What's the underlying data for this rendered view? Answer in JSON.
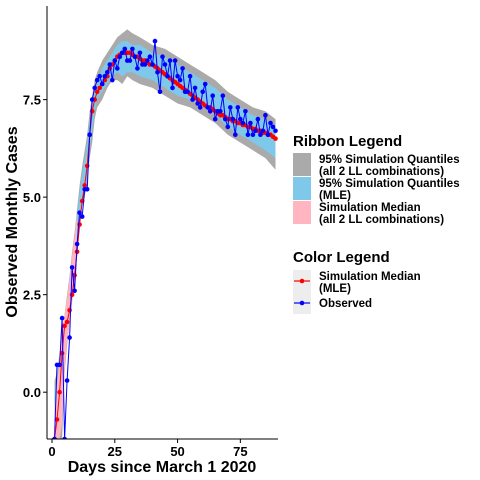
{
  "chart_data": {
    "type": "line",
    "xlabel": "Days since March 1 2020",
    "ylabel": "Observed Monthly Cases",
    "xlim": [
      -2,
      90
    ],
    "ylim": [
      -1.2,
      9.9
    ],
    "x_ticks": [
      0,
      25,
      50,
      75
    ],
    "y_ticks": [
      0.0,
      2.5,
      5.0,
      7.5
    ],
    "y_tick_labels": [
      "0.0",
      "2.5",
      "5.0",
      "7.5"
    ],
    "grid": false,
    "legend_position": "right",
    "ribbon_legend": {
      "title": "Ribbon  Legend",
      "entries": [
        {
          "lines": [
            "95% Simulation Quantiles",
            " (all 2 LL combinations)"
          ],
          "color": "#aaaaaa"
        },
        {
          "lines": [
            "95% Simulation Quantiles",
            " (MLE)"
          ],
          "color": "#7ec8ea"
        },
        {
          "lines": [
            "Simulation Median",
            "  (all 2 LL combinations)"
          ],
          "color": "#ffb6c1"
        }
      ]
    },
    "color_legend": {
      "title": "Color  Legend",
      "entries": [
        {
          "lines": [
            "Simulation Median",
            " (MLE)"
          ],
          "color": "#ff0000"
        },
        {
          "lines": [
            "Observed"
          ],
          "color": "#0000ff"
        }
      ]
    },
    "series": [
      {
        "name": "95% Simulation Quantiles (all 2 LL combinations)",
        "kind": "ribbon",
        "color": "#aaaaaa",
        "x": [
          1,
          2,
          3,
          4,
          5,
          6,
          7,
          8,
          9,
          10,
          11,
          12,
          13,
          14,
          15,
          16,
          17,
          18,
          20,
          22,
          24,
          26,
          28,
          30,
          32,
          35,
          40,
          45,
          50,
          55,
          60,
          65,
          70,
          75,
          80,
          85,
          89
        ],
        "lower": [
          -1.2,
          -1.2,
          -1.2,
          -1.2,
          0.5,
          1.2,
          1.8,
          2.3,
          3.0,
          3.6,
          4.2,
          4.8,
          5.0,
          5.4,
          6.0,
          6.4,
          7.0,
          7.3,
          7.5,
          7.8,
          8.0,
          8.0,
          7.9,
          8.1,
          8.0,
          7.9,
          7.8,
          7.6,
          7.4,
          7.3,
          7.1,
          6.9,
          6.6,
          6.4,
          6.2,
          6.0,
          5.7
        ],
        "upper": [
          0.3,
          0.5,
          1.0,
          1.6,
          2.0,
          2.5,
          3.0,
          3.6,
          4.1,
          4.7,
          5.3,
          5.8,
          6.2,
          6.6,
          7.2,
          7.6,
          8.0,
          8.2,
          8.5,
          8.7,
          8.9,
          9.1,
          9.2,
          9.3,
          9.2,
          9.1,
          8.9,
          8.8,
          8.6,
          8.4,
          8.2,
          8.0,
          7.7,
          7.5,
          7.3,
          7.2,
          7.0
        ]
      },
      {
        "name": "95% Simulation Quantiles (MLE)",
        "kind": "ribbon",
        "color": "#7ec8ea",
        "x": [
          1,
          2,
          3,
          4,
          5,
          6,
          7,
          8,
          9,
          10,
          11,
          12,
          13,
          14,
          15,
          16,
          17,
          18,
          20,
          22,
          24,
          26,
          28,
          30,
          32,
          35,
          40,
          45,
          50,
          55,
          60,
          65,
          70,
          75,
          80,
          85,
          89
        ],
        "lower": [
          -1.2,
          -1.2,
          -1.2,
          -0.4,
          0.9,
          1.5,
          2.0,
          2.6,
          3.2,
          3.8,
          4.4,
          5.0,
          5.2,
          5.6,
          6.2,
          6.7,
          7.2,
          7.5,
          7.7,
          7.9,
          8.1,
          8.2,
          8.1,
          8.2,
          8.2,
          8.1,
          8.0,
          7.8,
          7.6,
          7.5,
          7.3,
          7.1,
          6.8,
          6.6,
          6.4,
          6.2,
          6.0
        ],
        "upper": [
          0.1,
          0.3,
          0.8,
          1.4,
          1.9,
          2.3,
          2.8,
          3.4,
          3.9,
          4.5,
          5.1,
          5.6,
          6.0,
          6.4,
          7.0,
          7.4,
          7.8,
          8.0,
          8.3,
          8.5,
          8.7,
          8.9,
          9.0,
          9.0,
          8.9,
          8.9,
          8.7,
          8.6,
          8.4,
          8.2,
          8.0,
          7.8,
          7.5,
          7.3,
          7.1,
          7.0,
          6.8
        ]
      },
      {
        "name": "Simulation Median (all 2 LL combinations)",
        "kind": "ribbon",
        "color": "#ffb6c1",
        "x": [
          1,
          2,
          3,
          4,
          5,
          6,
          7,
          8,
          9,
          10
        ],
        "lower": [
          -1.2,
          -1.2,
          -1.2,
          -0.8,
          0.6,
          1.3,
          1.8,
          2.4,
          3.0,
          3.6
        ],
        "upper": [
          -0.4,
          0.2,
          0.8,
          1.5,
          2.0,
          2.4,
          2.9,
          3.5,
          4.0,
          4.6
        ]
      },
      {
        "name": "Simulation Median (MLE)",
        "kind": "line",
        "color": "#ff0000",
        "x": [
          1,
          2,
          3,
          4,
          5,
          6,
          7,
          8,
          9,
          10,
          11,
          12,
          13,
          14,
          15,
          16,
          17,
          18,
          19,
          20,
          21,
          22,
          23,
          24,
          25,
          26,
          27,
          28,
          29,
          30,
          31,
          32,
          33,
          34,
          35,
          36,
          37,
          38,
          39,
          40,
          41,
          42,
          43,
          44,
          45,
          46,
          47,
          48,
          49,
          50,
          51,
          52,
          53,
          54,
          55,
          56,
          57,
          58,
          59,
          60,
          61,
          62,
          63,
          64,
          65,
          66,
          67,
          68,
          69,
          70,
          71,
          72,
          73,
          74,
          75,
          76,
          77,
          78,
          79,
          80,
          81,
          82,
          83,
          84,
          85,
          86,
          87,
          88,
          89
        ],
        "y": [
          -1.2,
          -0.7,
          0.0,
          1.0,
          1.7,
          1.8,
          2.1,
          2.5,
          3.0,
          3.6,
          4.3,
          4.9,
          5.3,
          5.8,
          6.6,
          7.2,
          7.5,
          7.7,
          7.8,
          7.9,
          8.0,
          8.1,
          8.3,
          8.4,
          8.5,
          8.6,
          8.65,
          8.7,
          8.7,
          8.7,
          8.7,
          8.65,
          8.6,
          8.6,
          8.55,
          8.5,
          8.5,
          8.45,
          8.4,
          8.4,
          8.35,
          8.3,
          8.25,
          8.2,
          8.15,
          8.1,
          8.05,
          8.0,
          7.95,
          7.9,
          7.85,
          7.8,
          7.75,
          7.7,
          7.65,
          7.6,
          7.55,
          7.5,
          7.45,
          7.4,
          7.35,
          7.3,
          7.3,
          7.25,
          7.2,
          7.15,
          7.1,
          7.1,
          7.05,
          7.0,
          7.0,
          6.95,
          6.95,
          6.9,
          6.9,
          6.85,
          6.85,
          6.8,
          6.8,
          6.75,
          6.75,
          6.7,
          6.7,
          6.65,
          6.65,
          6.6,
          6.6,
          6.55,
          6.5
        ]
      },
      {
        "name": "Observed",
        "kind": "line",
        "color": "#0000ff",
        "x": [
          1,
          2,
          3,
          4,
          5,
          6,
          7,
          8,
          9,
          10,
          11,
          12,
          13,
          14,
          15,
          16,
          17,
          18,
          19,
          20,
          21,
          22,
          23,
          24,
          25,
          26,
          27,
          28,
          29,
          30,
          31,
          32,
          33,
          34,
          35,
          36,
          37,
          38,
          39,
          40,
          41,
          42,
          43,
          44,
          45,
          46,
          47,
          48,
          49,
          50,
          51,
          52,
          53,
          54,
          55,
          56,
          57,
          58,
          59,
          60,
          61,
          62,
          63,
          64,
          65,
          66,
          67,
          68,
          69,
          70,
          71,
          72,
          73,
          74,
          75,
          76,
          77,
          78,
          79,
          80,
          81,
          82,
          83,
          84,
          85,
          86,
          87,
          88,
          89
        ],
        "y": [
          -1.2,
          0.7,
          0.7,
          1.9,
          -1.2,
          0.3,
          1.4,
          3.2,
          2.6,
          3.8,
          4.6,
          4.5,
          5.2,
          5.2,
          6.6,
          7.5,
          7.8,
          8.0,
          8.1,
          7.9,
          8.1,
          8.2,
          8.4,
          8.0,
          8.5,
          8.3,
          8.6,
          8.7,
          8.8,
          8.5,
          8.5,
          8.8,
          8.6,
          8.3,
          8.7,
          8.4,
          8.4,
          8.5,
          8.6,
          8.4,
          9.0,
          8.2,
          7.7,
          8.6,
          8.4,
          8.1,
          8.5,
          7.8,
          8.5,
          8.1,
          8.0,
          8.3,
          7.7,
          7.7,
          8.1,
          7.5,
          7.8,
          7.4,
          7.3,
          7.7,
          7.9,
          7.3,
          7.2,
          7.6,
          7.0,
          7.2,
          7.2,
          7.6,
          7.0,
          6.8,
          7.3,
          7.0,
          6.6,
          7.3,
          7.0,
          6.9,
          7.2,
          6.6,
          6.9,
          6.6,
          6.7,
          7.0,
          6.6,
          6.7,
          7.1,
          6.6,
          6.9,
          6.8,
          6.7
        ]
      }
    ]
  }
}
